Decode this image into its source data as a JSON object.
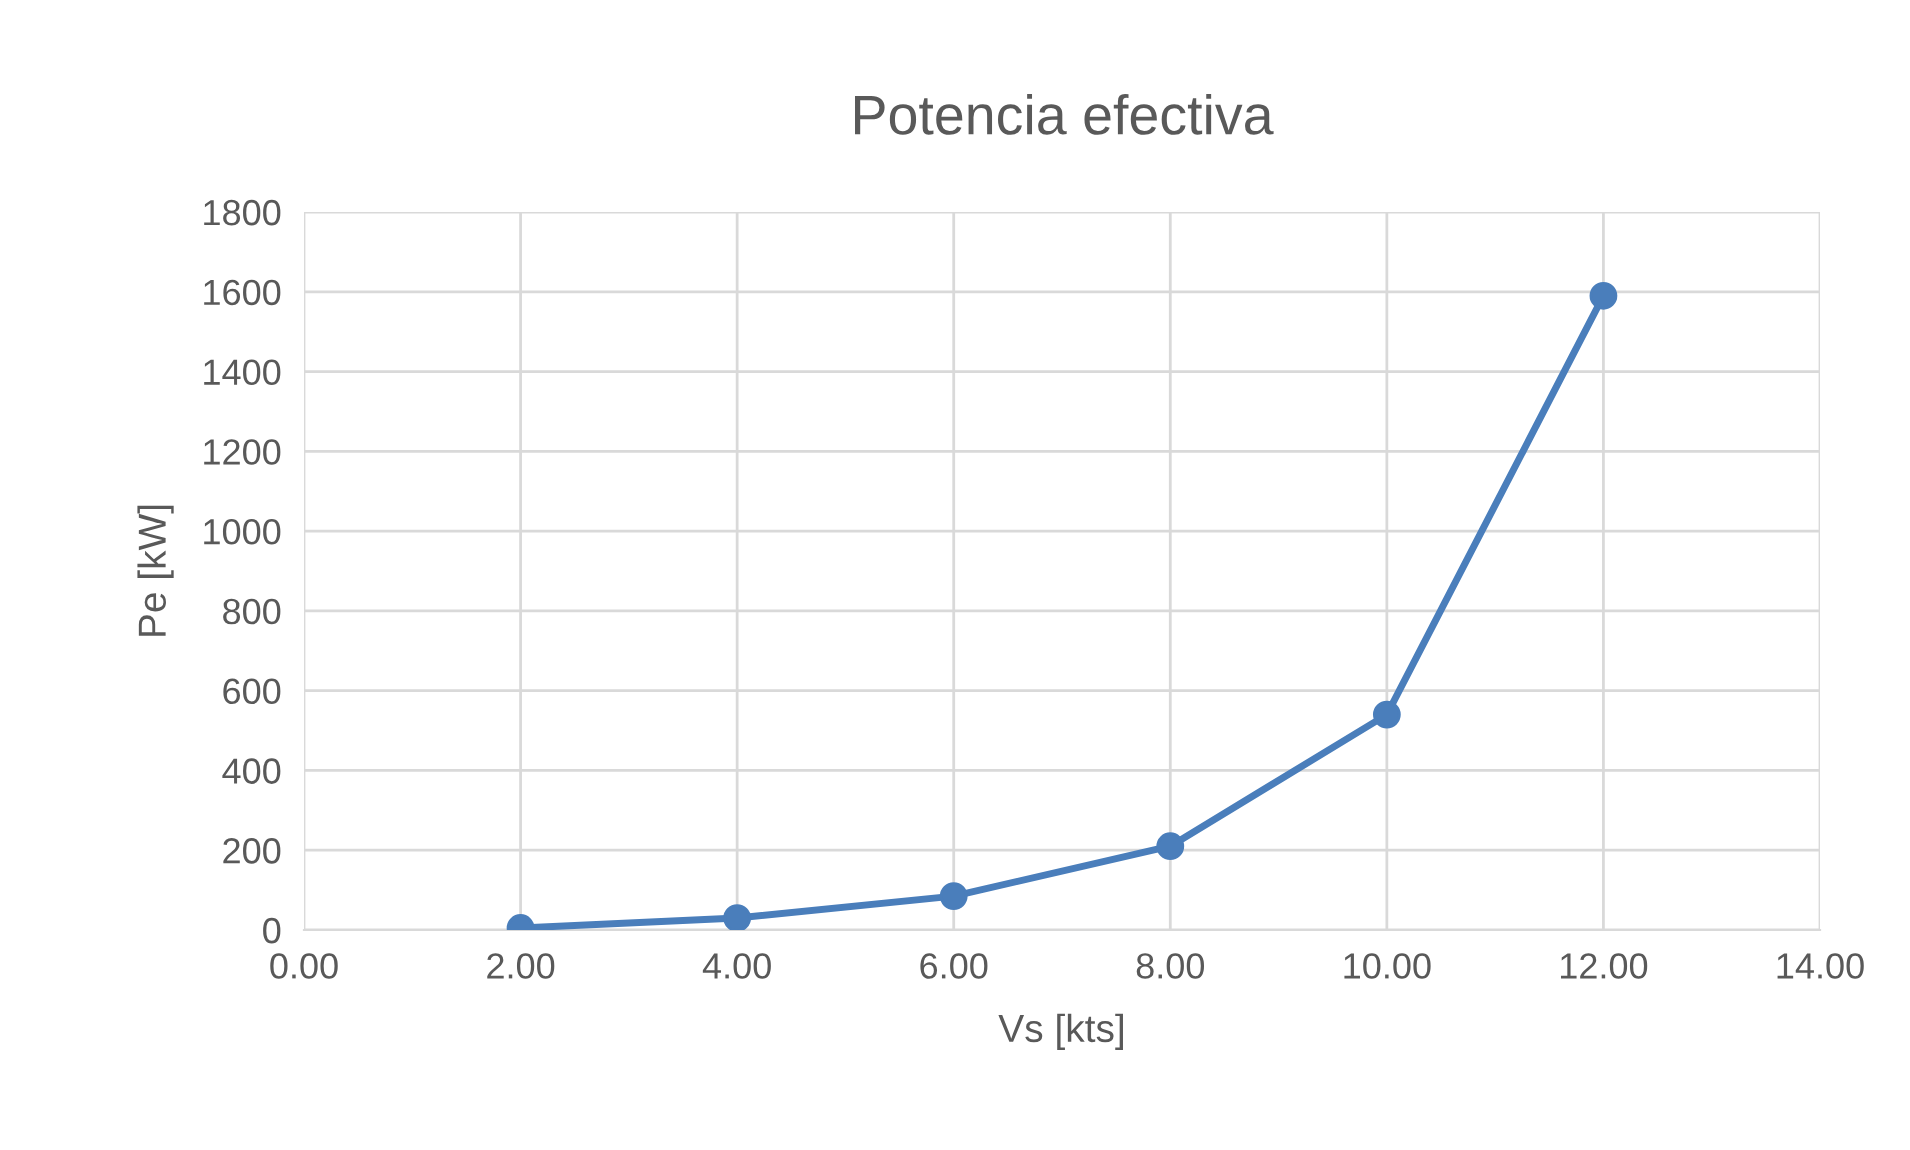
{
  "chart_data": {
    "type": "line",
    "title": "Potencia efectiva",
    "xlabel": "Vs [kts]",
    "ylabel": "Pe [kW]",
    "x": [
      2,
      4,
      6,
      8,
      10,
      12
    ],
    "series": [
      {
        "color": "#4a7ebb",
        "values": [
          5,
          30,
          85,
          210,
          540,
          1590
        ]
      }
    ],
    "xlim": [
      0,
      14
    ],
    "xticks": [
      {
        "value": 0,
        "label": "0.00"
      },
      {
        "value": 2,
        "label": "2.00"
      },
      {
        "value": 4,
        "label": "4.00"
      },
      {
        "value": 6,
        "label": "6.00"
      },
      {
        "value": 8,
        "label": "8.00"
      },
      {
        "value": 10,
        "label": "10.00"
      },
      {
        "value": 12,
        "label": "12.00"
      },
      {
        "value": 14,
        "label": "14.00"
      }
    ],
    "ylim": [
      0,
      1800
    ],
    "yticks": [
      0,
      200,
      400,
      600,
      800,
      1000,
      1200,
      1400,
      1600,
      1800
    ],
    "grid": true,
    "marker": "circle",
    "line_style": "solid",
    "legend": false
  }
}
